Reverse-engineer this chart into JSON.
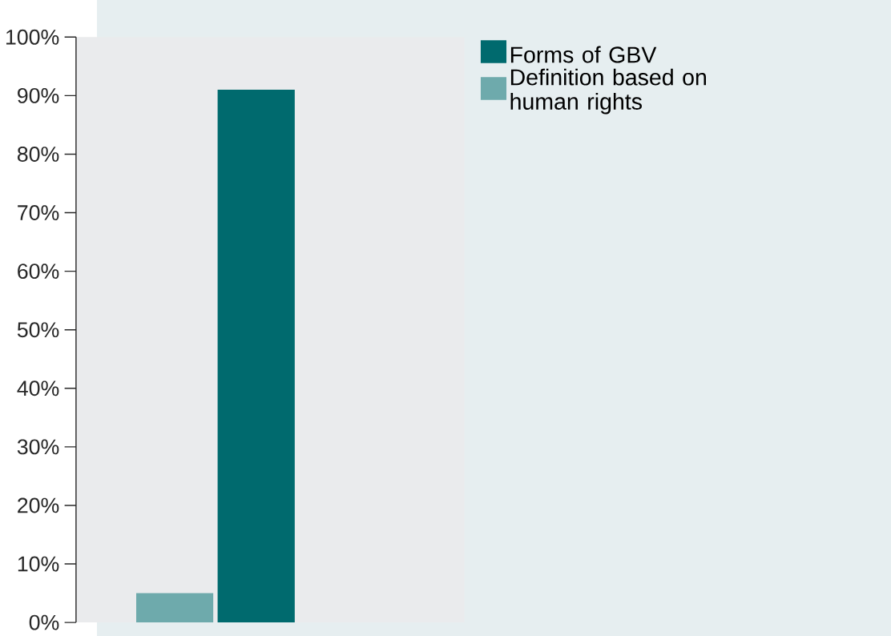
{
  "chart_data": {
    "type": "bar",
    "categories": [
      null
    ],
    "series": [
      {
        "name": "Definition based on human rights",
        "color": "#6eaaac",
        "values": [
          5
        ]
      },
      {
        "name": "Forms of GBV",
        "color": "#006a6e",
        "values": [
          91
        ]
      }
    ],
    "ylim": [
      0,
      100
    ],
    "yticks": [
      {
        "value": 0,
        "label": "0%"
      },
      {
        "value": 10,
        "label": "10%"
      },
      {
        "value": 20,
        "label": "20%"
      },
      {
        "value": 30,
        "label": "30%"
      },
      {
        "value": 40,
        "label": "40%"
      },
      {
        "value": 50,
        "label": "50%"
      },
      {
        "value": 60,
        "label": "60%"
      },
      {
        "value": 70,
        "label": "70%"
      },
      {
        "value": 80,
        "label": "80%"
      },
      {
        "value": 90,
        "label": "90%"
      },
      {
        "value": 100,
        "label": "100%"
      }
    ],
    "legend": "top right"
  }
}
